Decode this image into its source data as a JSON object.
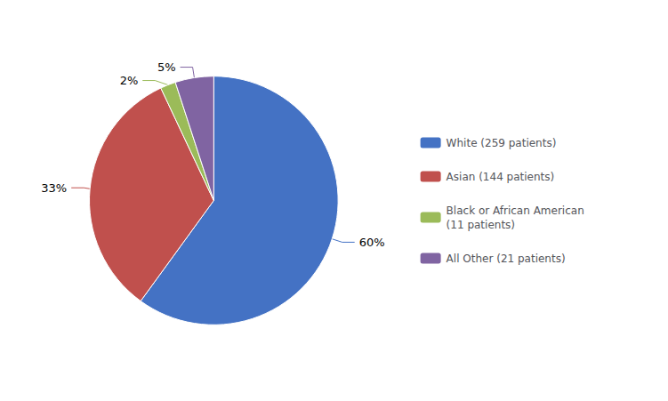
{
  "chart_data": {
    "type": "pie",
    "categories": [
      "White (259 patients)",
      "Asian (144 patients)",
      "Black or African American\n(11 patients)",
      "All Other (21 patients)"
    ],
    "values": [
      60,
      33,
      2,
      5
    ],
    "value_labels": [
      "60%",
      "33%",
      "2%",
      "5%"
    ],
    "colors": [
      "#4472C4",
      "#C0504D",
      "#9BBB59",
      "#8064A2"
    ],
    "data_labels": true,
    "legend": "right"
  }
}
